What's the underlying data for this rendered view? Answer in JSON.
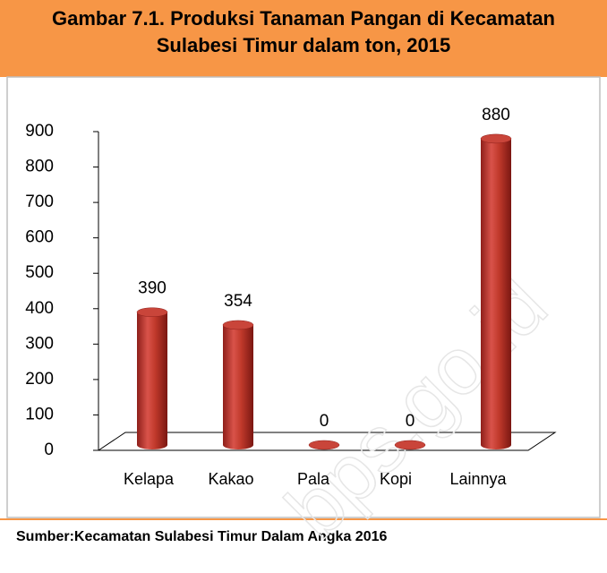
{
  "chart_data": {
    "type": "bar",
    "title": "Gambar 7.1. Produksi Tanaman Pangan di Kecamatan Sulabesi Timur dalam ton, 2015",
    "categories": [
      "Kelapa",
      "Kakao",
      "Pala",
      "Kopi",
      "Lainnya"
    ],
    "values": [
      390,
      354,
      0,
      0,
      880
    ],
    "color": "#c0392b",
    "ylim": [
      0,
      900
    ],
    "yticks": [
      0,
      100,
      200,
      300,
      400,
      500,
      600,
      700,
      800,
      900
    ],
    "grid": false,
    "source": "Sumber:Kecamatan Sulabesi Timur Dalam Angka 2016",
    "watermark": "bps.go.id"
  }
}
